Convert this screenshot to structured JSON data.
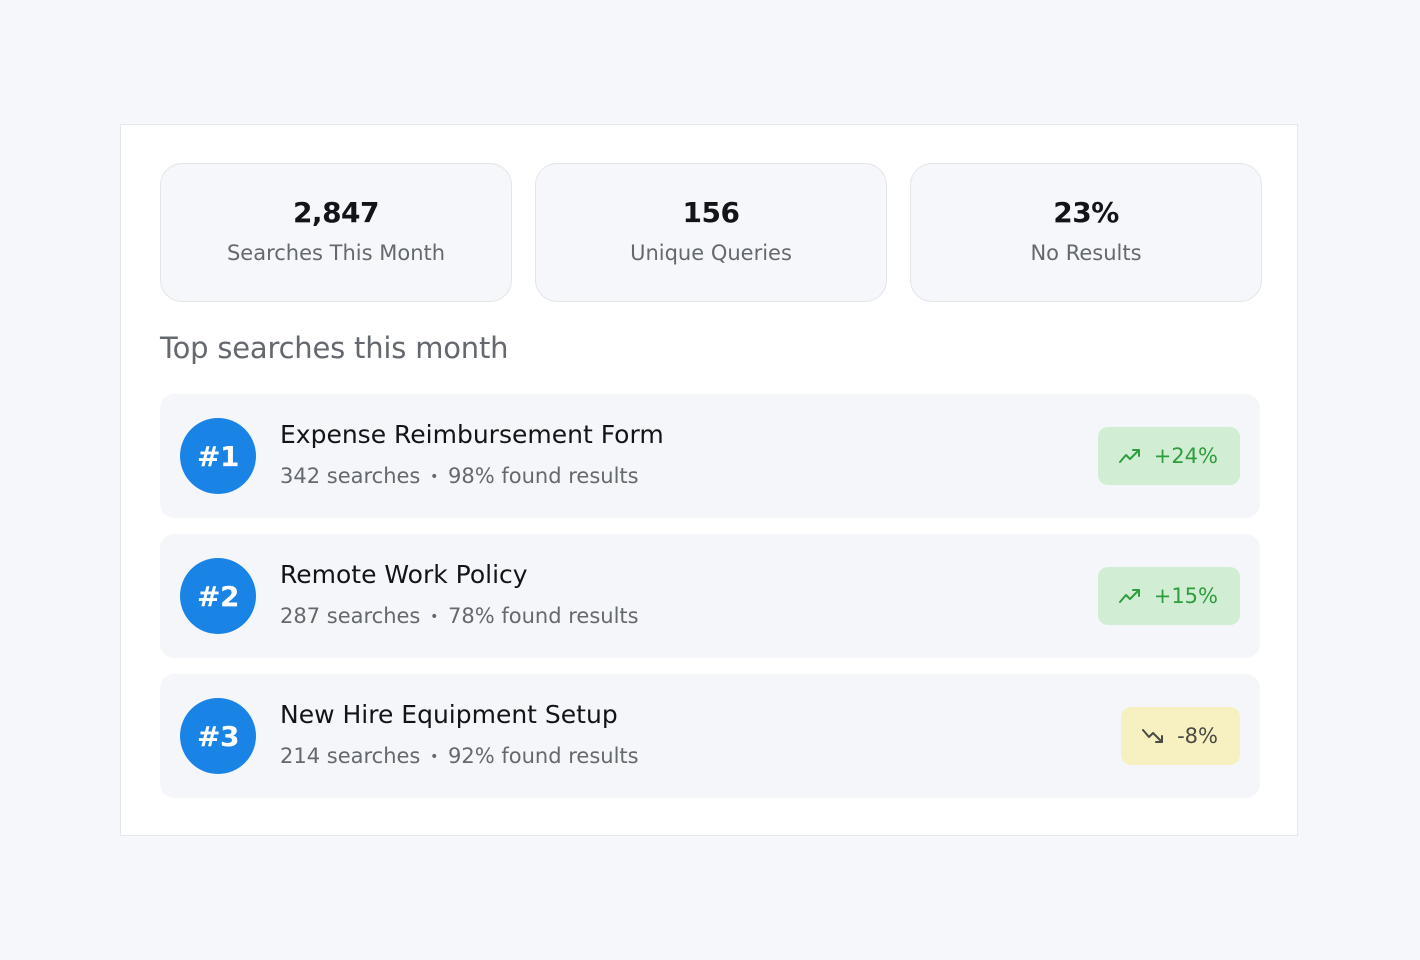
{
  "stats": [
    {
      "value": "2,847",
      "label": "Searches This Month"
    },
    {
      "value": "156",
      "label": "Unique Queries"
    },
    {
      "value": "23%",
      "label": "No Results"
    }
  ],
  "section_title": "Top searches this month",
  "top_searches": [
    {
      "rank": "#1",
      "title": "Expense Reimbursement Form",
      "searches": "342 searches",
      "separator": "•",
      "found": "98% found results",
      "trend": "+24%",
      "trend_direction": "up",
      "trend_icon": "trending-up-icon"
    },
    {
      "rank": "#2",
      "title": "Remote Work Policy",
      "searches": "287 searches",
      "separator": "•",
      "found": "78% found results",
      "trend": "+15%",
      "trend_direction": "up",
      "trend_icon": "trending-up-icon"
    },
    {
      "rank": "#3",
      "title": "New Hire Equipment Setup",
      "searches": "214 searches",
      "separator": "•",
      "found": "92% found results",
      "trend": "-8%",
      "trend_direction": "down",
      "trend_icon": "trending-down-icon"
    }
  ],
  "colors": {
    "page_background": "#f5f7fb",
    "panel_background": "#ffffff",
    "rank_badge": "#1a83e6",
    "trend_up_background": "#d1eed5",
    "trend_up_text": "#2f9c3e",
    "trend_down_background": "#f7f0c0",
    "trend_down_text": "#4a4a44"
  }
}
